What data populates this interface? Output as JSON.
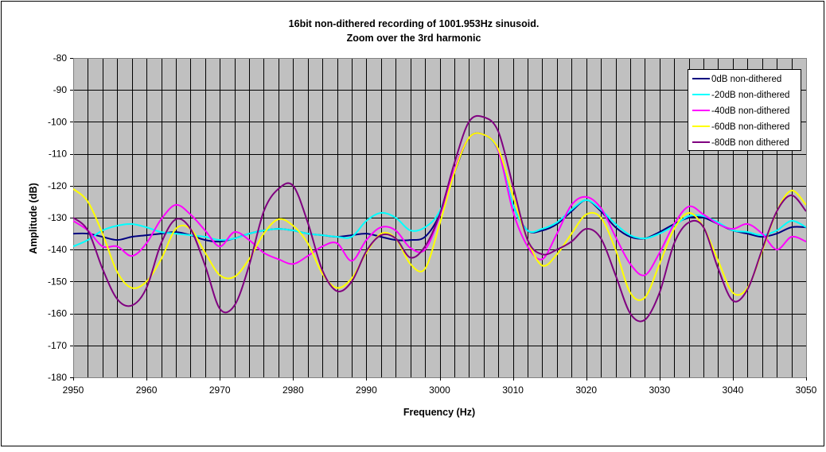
{
  "chart_data": {
    "type": "line",
    "title": "16bit non-dithered recording of 1001.953Hz sinusoid.",
    "subtitle": "Zoom over the 3rd harmonic",
    "xlabel": "Frequency (Hz)",
    "ylabel": "Amplitude (dB)",
    "xlim": [
      2950,
      3050
    ],
    "ylim": [
      -180,
      -80
    ],
    "xticks": [
      2950,
      2960,
      2970,
      2980,
      2990,
      3000,
      3010,
      3020,
      3030,
      3040,
      3050
    ],
    "yticks": [
      -80,
      -90,
      -100,
      -110,
      -120,
      -130,
      -140,
      -150,
      -160,
      -170,
      -180
    ],
    "minor_x_grid_step": 2,
    "grid": true,
    "plot_background": "#c0c0c0",
    "legend_position": "top-right",
    "x": [
      2950,
      2952,
      2954,
      2956,
      2958,
      2960,
      2962,
      2964,
      2966,
      2968,
      2970,
      2972,
      2974,
      2976,
      2978,
      2980,
      2982,
      2984,
      2986,
      2988,
      2990,
      2992,
      2994,
      2996,
      2998,
      3000,
      3002,
      3004,
      3006,
      3008,
      3010,
      3012,
      3014,
      3016,
      3018,
      3020,
      3022,
      3024,
      3026,
      3028,
      3030,
      3032,
      3034,
      3036,
      3038,
      3040,
      3042,
      3044,
      3046,
      3048,
      3050
    ],
    "series": [
      {
        "name": "0dB non-dithered",
        "color": "#000080",
        "values": [
          -135,
          -135,
          -136,
          -137,
          -136,
          -135.5,
          -135,
          -134.5,
          -135.5,
          -137,
          -137.5,
          -136.5,
          -135,
          -134,
          -133.5,
          -134,
          -135,
          -135.5,
          -136,
          -135.5,
          -135,
          -136,
          -137,
          -137,
          -136,
          -129,
          -116,
          -105,
          -104,
          -109,
          -126,
          -134,
          -134,
          -132,
          -128,
          -124.5,
          -128,
          -133,
          -136,
          -136.5,
          -134.5,
          -132,
          -130,
          -130,
          -132,
          -134,
          -135,
          -136,
          -135,
          -133,
          -133
        ]
      },
      {
        "name": "-20dB non-dithered",
        "color": "#00ffff",
        "values": [
          -139,
          -137,
          -134,
          -132.5,
          -132,
          -133,
          -134.5,
          -135,
          -135.5,
          -136,
          -137,
          -136.5,
          -135,
          -134,
          -133.5,
          -134,
          -135,
          -135.5,
          -136,
          -136,
          -131,
          -128.5,
          -130,
          -134,
          -133,
          -128,
          -115,
          -105,
          -104,
          -109,
          -126,
          -134,
          -133.5,
          -131.5,
          -127.5,
          -124.5,
          -127.5,
          -132,
          -135.5,
          -136.5,
          -135,
          -132.5,
          -129.5,
          -129.5,
          -131.5,
          -134,
          -134.5,
          -135.5,
          -134,
          -131,
          -133
        ]
      },
      {
        "name": "-40dB non-dithered",
        "color": "#ff00ff",
        "values": [
          -131,
          -134,
          -139,
          -139,
          -142,
          -138,
          -130.5,
          -126,
          -129,
          -134,
          -139,
          -134.5,
          -137,
          -141,
          -143,
          -144.5,
          -142,
          -139,
          -138,
          -143.5,
          -137,
          -133,
          -134,
          -139.5,
          -140,
          -129.5,
          -115,
          -105,
          -104,
          -109,
          -128,
          -139,
          -143,
          -135,
          -126,
          -123.5,
          -127,
          -136,
          -144.5,
          -148,
          -141,
          -132,
          -126.5,
          -129,
          -132,
          -133.5,
          -132,
          -135,
          -140,
          -136,
          -137.5
        ]
      },
      {
        "name": "-60dB non-dithered",
        "color": "#ffff00",
        "values": [
          -121,
          -125,
          -135,
          -147,
          -152,
          -150,
          -143,
          -133.5,
          -133.5,
          -141,
          -148,
          -148.5,
          -143,
          -135,
          -130.5,
          -132.5,
          -138,
          -147.5,
          -152,
          -149,
          -141,
          -135,
          -136.5,
          -144.5,
          -146,
          -132,
          -116,
          -105,
          -104,
          -108.5,
          -123,
          -137,
          -145,
          -141.5,
          -135,
          -129,
          -130,
          -140,
          -153.5,
          -155,
          -144.5,
          -133.5,
          -128.5,
          -133,
          -143.5,
          -153.5,
          -152,
          -140.5,
          -128,
          -121.5,
          -126
        ]
      },
      {
        "name": "-80dB non dithered",
        "color": "#800080",
        "values": [
          -130,
          -134,
          -146,
          -155.5,
          -157.5,
          -152,
          -138,
          -130.5,
          -133.5,
          -145,
          -158.5,
          -157.5,
          -145,
          -128,
          -121,
          -120,
          -131.5,
          -146.5,
          -153,
          -150,
          -140.5,
          -135.5,
          -136.5,
          -142.5,
          -139,
          -129,
          -113,
          -100,
          -98.5,
          -103,
          -120,
          -137,
          -141.5,
          -140,
          -137.5,
          -133.5,
          -136.5,
          -148,
          -160,
          -162,
          -153.5,
          -138,
          -131.5,
          -133,
          -146,
          -156,
          -152.5,
          -140,
          -128,
          -123,
          -128
        ]
      }
    ]
  }
}
